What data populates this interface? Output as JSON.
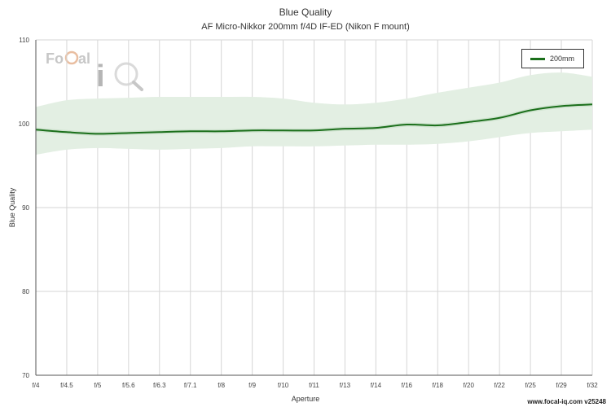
{
  "watermark": {
    "brand_text": "FoCal iQ"
  },
  "footer": {
    "credit": "www.focal-iq.com  v25248"
  },
  "chart_data": {
    "type": "line",
    "title": "Blue Quality",
    "subtitle": "AF Micro-Nikkor 200mm f/4D IF-ED (Nikon F mount)",
    "xlabel": "Aperture",
    "ylabel": "Blue Quality",
    "categories": [
      "f/4",
      "f/4.5",
      "f/5",
      "f/5.6",
      "f/6.3",
      "f/7.1",
      "f/8",
      "f/9",
      "f/10",
      "f/11",
      "f/13",
      "f/14",
      "f/16",
      "f/18",
      "f/20",
      "f/22",
      "f/25",
      "f/29",
      "f/32"
    ],
    "ylim": [
      70,
      110
    ],
    "yticks": [
      70,
      80,
      90,
      100,
      110
    ],
    "grid": true,
    "legend_position": "top-right",
    "series": [
      {
        "name": "200mm",
        "color": "#1b6f1b",
        "band_color": "#e3efe3",
        "values": [
          99.3,
          99.0,
          98.8,
          98.9,
          99.0,
          99.1,
          99.1,
          99.2,
          99.2,
          99.2,
          99.4,
          99.5,
          99.9,
          99.8,
          100.2,
          100.7,
          101.6,
          102.1,
          102.3
        ],
        "upper": [
          102.0,
          102.8,
          103.0,
          103.1,
          103.2,
          103.2,
          103.2,
          103.2,
          103.0,
          102.5,
          102.3,
          102.5,
          103.0,
          103.7,
          104.3,
          104.9,
          105.8,
          106.1,
          105.6
        ],
        "lower": [
          96.3,
          96.9,
          97.1,
          97.0,
          96.9,
          97.0,
          97.1,
          97.3,
          97.3,
          97.3,
          97.4,
          97.5,
          97.5,
          97.6,
          97.9,
          98.4,
          98.9,
          99.1,
          99.3
        ]
      }
    ]
  }
}
